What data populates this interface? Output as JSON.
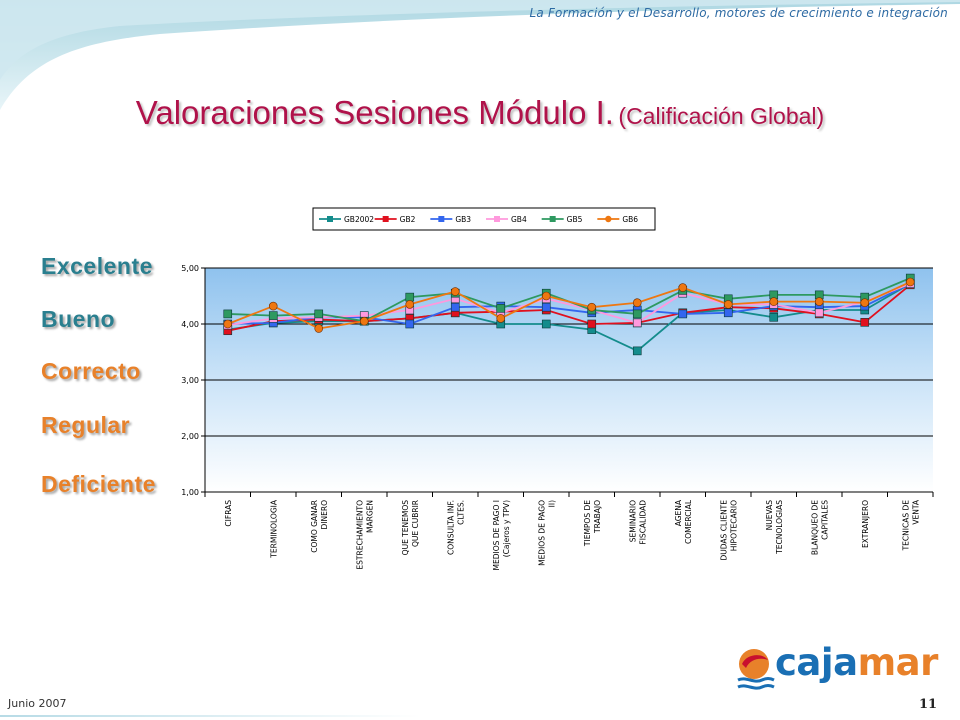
{
  "header": {
    "tagline": "La Formación y el Desarrollo, motores de crecimiento e integración"
  },
  "title": {
    "main": "Valoraciones Sesiones Módulo I.",
    "sub": "(Calificación Global)"
  },
  "rating_labels": [
    {
      "label": "Excelente",
      "color": "#2a7f8f"
    },
    {
      "label": "Bueno",
      "color": "#2a7f8f"
    },
    {
      "label": "Correcto",
      "color": "#e8812a"
    },
    {
      "label": "Regular",
      "color": "#e8812a"
    },
    {
      "label": "Deficiente",
      "color": "#e8812a"
    }
  ],
  "footer": {
    "date": "Junio 2007",
    "page_number": "11"
  },
  "logo": {
    "text_a": "caja",
    "text_b": "mar",
    "colors": {
      "blue": "#1a6fb4",
      "orange": "#e8812a",
      "red": "#c8102e"
    }
  },
  "chart_data": {
    "type": "line",
    "ylim": [
      1,
      5
    ],
    "yticks": [
      "1,00",
      "2,00",
      "3,00",
      "4,00",
      "5,00"
    ],
    "grid": true,
    "legend_position": "top",
    "categories": [
      [
        "CIFRAS"
      ],
      [
        "TERMINOLOGIA"
      ],
      [
        "COMO GANAR",
        "DINERO"
      ],
      [
        "ESTRECHAMIENTO",
        "MARGEN"
      ],
      [
        "QUE TENEMOS",
        "QUE CUBRIR"
      ],
      [
        "CONSULTA INF.",
        "CLTES."
      ],
      [
        "MEDIOS DE PAGO I",
        "(Cajeros y TPV)"
      ],
      [
        "MEDIOS DE PAGO",
        "II)"
      ],
      [
        "TIEMPOS DE",
        "TRABAJO"
      ],
      [
        "SEMINARIO",
        "FISCALIDAD"
      ],
      [
        "AGENA",
        "COMERCIAL"
      ],
      [
        "DUDAS CLIENTE",
        "HIPOTECARIO"
      ],
      [
        "NUEVAS",
        "TECNOLOGIAS"
      ],
      [
        "BLANQUEO DE",
        "CAPITALES"
      ],
      [
        "EXTRANJERO"
      ],
      [
        "TECNICAS DE",
        "VENTA"
      ]
    ],
    "series": [
      {
        "name": "GB2002",
        "color": "#148c8c",
        "marker": "square",
        "values": [
          3.9,
          4.02,
          4.05,
          4.05,
          4.1,
          4.2,
          4.0,
          4.0,
          3.9,
          3.52,
          4.2,
          4.25,
          4.12,
          4.25,
          4.25,
          4.72
        ]
      },
      {
        "name": "GB2",
        "color": "#e0101e",
        "marker": "square",
        "values": [
          3.88,
          4.05,
          4.08,
          4.05,
          4.1,
          4.2,
          4.22,
          4.25,
          4.0,
          4.02,
          4.2,
          4.3,
          4.28,
          4.18,
          4.03,
          4.7
        ]
      },
      {
        "name": "GB3",
        "color": "#3366ee",
        "marker": "square",
        "values": [
          4.0,
          4.02,
          4.12,
          4.12,
          4.0,
          4.3,
          4.32,
          4.3,
          4.2,
          4.25,
          4.18,
          4.2,
          4.32,
          4.3,
          4.32,
          4.72
        ]
      },
      {
        "name": "GB4",
        "color": "#ff99dd",
        "marker": "square",
        "values": [
          3.98,
          4.1,
          4.12,
          4.15,
          4.25,
          4.45,
          4.2,
          4.45,
          4.25,
          4.02,
          4.55,
          4.35,
          4.35,
          4.2,
          4.4,
          4.72
        ]
      },
      {
        "name": "GB5",
        "color": "#2e9960",
        "marker": "square",
        "values": [
          4.18,
          4.15,
          4.18,
          4.05,
          4.48,
          4.55,
          4.28,
          4.55,
          4.25,
          4.18,
          4.6,
          4.45,
          4.52,
          4.52,
          4.48,
          4.82
        ]
      },
      {
        "name": "GB6",
        "color": "#ee7711",
        "marker": "circle",
        "values": [
          4.0,
          4.32,
          3.92,
          4.05,
          4.35,
          4.58,
          4.1,
          4.5,
          4.3,
          4.38,
          4.65,
          4.35,
          4.4,
          4.4,
          4.38,
          4.75
        ]
      }
    ]
  }
}
